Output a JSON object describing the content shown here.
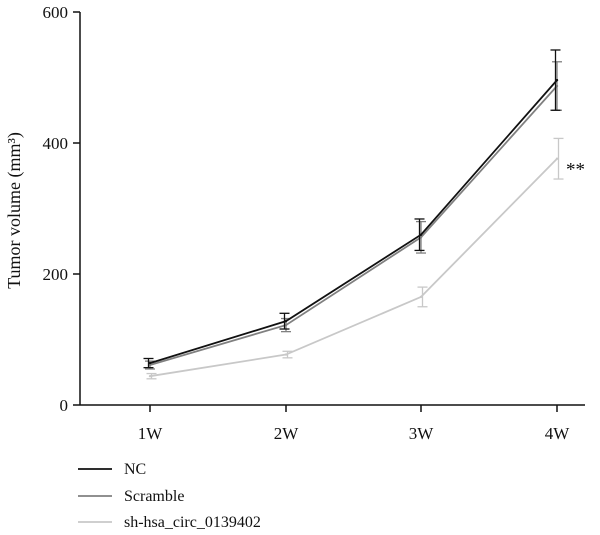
{
  "chart_data": {
    "type": "line",
    "title": "",
    "xlabel": "",
    "ylabel": "Tumor volume (mm³)",
    "categories": [
      "1W",
      "2W",
      "3W",
      "4W"
    ],
    "ylim": [
      0,
      600
    ],
    "yticks": [
      0,
      200,
      400,
      600
    ],
    "grid": false,
    "legend_position": "bottom-left",
    "series": [
      {
        "name": "NC",
        "color": "#111111",
        "values": [
          64,
          128,
          260,
          496
        ],
        "errors": [
          7,
          12,
          24,
          46
        ]
      },
      {
        "name": "Scramble",
        "color": "#808080",
        "values": [
          61,
          122,
          256,
          487
        ],
        "errors": [
          6,
          10,
          24,
          37
        ]
      },
      {
        "name": "sh-hsa_circ_0139402",
        "color": "#c8c8c8",
        "values": [
          44,
          77,
          165,
          376
        ],
        "errors": [
          4,
          5,
          15,
          31
        ]
      }
    ],
    "annotations": [
      {
        "text": "**",
        "category": "4W",
        "value": 366
      }
    ]
  }
}
